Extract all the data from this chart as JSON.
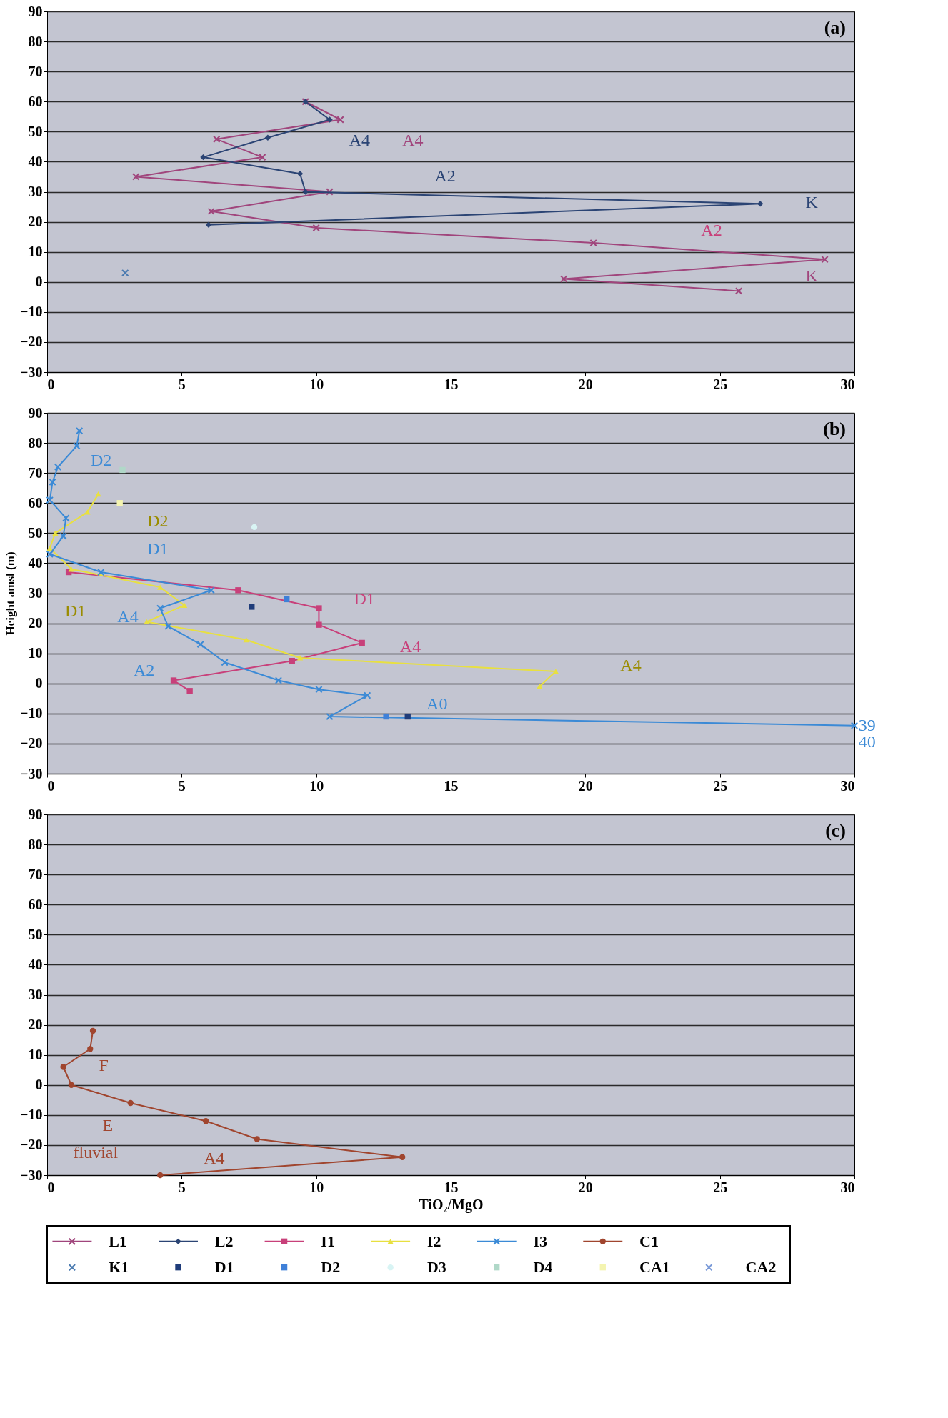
{
  "chart_data": [
    {
      "type": "line",
      "title": "(a)",
      "xlim": [
        0,
        30
      ],
      "ylim": [
        -30,
        90
      ],
      "xticks": [
        0,
        5,
        10,
        15,
        20,
        25,
        30
      ],
      "yticks": [
        -30,
        -20,
        -10,
        0,
        10,
        20,
        30,
        40,
        50,
        60,
        70,
        80,
        90
      ],
      "grid": "y",
      "legend": "bottom",
      "series": [
        {
          "name": "L1",
          "marker": "cross",
          "color": "#a0457c",
          "x": [
            9.6,
            10.9,
            6.3,
            8.0,
            3.3,
            10.5,
            6.1,
            10.0,
            20.3,
            28.9,
            19.2,
            25.7
          ],
          "values": [
            60,
            54,
            47.5,
            41.5,
            35,
            30,
            23.5,
            18,
            13,
            7.5,
            1,
            -3
          ]
        },
        {
          "name": "L2",
          "marker": "diamond",
          "color": "#2b4474",
          "x": [
            9.6,
            10.5,
            8.2,
            5.8,
            9.4,
            9.6,
            26.5,
            6.0
          ],
          "values": [
            60,
            54,
            48,
            41.5,
            36,
            30,
            26,
            19
          ]
        },
        {
          "name": "K1",
          "type": "scatter",
          "marker": "cross",
          "color": "#4a7ab0",
          "x": [
            2.9
          ],
          "values": [
            3
          ]
        }
      ],
      "annotations": [
        "A4",
        "A4",
        "A2",
        "K",
        "A2",
        "K"
      ]
    },
    {
      "type": "line",
      "title": "(b)",
      "ylabel": "Height amsl (m)",
      "xlim": [
        0,
        30
      ],
      "ylim": [
        -30,
        90
      ],
      "xticks": [
        0,
        5,
        10,
        15,
        20,
        25,
        30
      ],
      "yticks": [
        -30,
        -20,
        -10,
        0,
        10,
        20,
        30,
        40,
        50,
        60,
        70,
        80,
        90
      ],
      "grid": "y",
      "legend": "bottom",
      "series": [
        {
          "name": "I1",
          "marker": "square",
          "color": "#c8407a",
          "x": [
            0.8,
            7.1,
            10.1,
            10.1,
            11.7,
            9.1,
            4.7,
            5.3
          ],
          "values": [
            37,
            31,
            25,
            19.5,
            13.5,
            7.5,
            1,
            -2.5
          ]
        },
        {
          "name": "I2",
          "marker": "triangle",
          "color": "#e8e040",
          "x": [
            1.9,
            1.5,
            0.3,
            0.1,
            0.9,
            4.2,
            5.1,
            3.7,
            7.4,
            9.4,
            18.9,
            18.3
          ],
          "values": [
            63,
            57,
            50,
            45,
            38,
            32,
            26,
            20.5,
            14.5,
            8.5,
            4,
            -1
          ]
        },
        {
          "name": "I3",
          "marker": "cross",
          "color": "#3b8ad6",
          "x": [
            1.2,
            1.1,
            0.4,
            0.2,
            0.1,
            0.7,
            0.6,
            0.1,
            2.0,
            6.1,
            4.2,
            4.5,
            5.7,
            6.6,
            8.6,
            10.1,
            11.9,
            10.5,
            30
          ],
          "values": [
            84,
            79,
            72,
            67,
            61,
            55,
            49,
            43,
            37,
            31,
            25,
            19,
            13,
            7,
            1,
            -2,
            -4,
            -11,
            -14
          ]
        },
        {
          "name": "D1",
          "type": "scatter",
          "marker": "square",
          "color": "#1f3c7a",
          "x": [
            7.6,
            13.4
          ],
          "values": [
            25.5,
            -11
          ]
        },
        {
          "name": "D2",
          "type": "scatter",
          "marker": "square",
          "color": "#3f80d8",
          "x": [
            8.9,
            12.6
          ],
          "values": [
            28,
            -11
          ]
        },
        {
          "name": "D3",
          "type": "scatter",
          "marker": "circle",
          "color": "#d8f4f4",
          "x": [
            7.7
          ],
          "values": [
            52
          ]
        },
        {
          "name": "D4",
          "type": "scatter",
          "marker": "square",
          "color": "#b0d8c8",
          "x": [
            2.8
          ],
          "values": [
            71
          ]
        },
        {
          "name": "CA1",
          "type": "scatter",
          "marker": "square",
          "color": "#f4f4b0",
          "x": [
            2.7
          ],
          "values": [
            60
          ]
        },
        {
          "name": "CA2",
          "type": "scatter",
          "marker": "cross",
          "color": "#7a9ad8"
        }
      ],
      "annotations": [
        "D2",
        "D2",
        "D1",
        "D1",
        "A4",
        "D1",
        "A4",
        "A4",
        "A2",
        "A0",
        "39",
        "40"
      ]
    },
    {
      "type": "line",
      "title": "(c)",
      "xlabel": "TiO₂/MgO",
      "xlim": [
        0,
        30
      ],
      "ylim": [
        -30,
        90
      ],
      "xticks": [
        0,
        5,
        10,
        15,
        20,
        25,
        30
      ],
      "yticks": [
        -30,
        -20,
        -10,
        0,
        10,
        20,
        30,
        40,
        50,
        60,
        70,
        80,
        90
      ],
      "grid": "y",
      "legend": "bottom",
      "series": [
        {
          "name": "C1",
          "marker": "circle",
          "color": "#a0452e",
          "x": [
            1.7,
            1.6,
            0.6,
            0.9,
            3.1,
            5.9,
            7.8,
            13.2,
            4.2
          ],
          "values": [
            18,
            12,
            6,
            0,
            -6,
            -12,
            -18,
            -24,
            -30
          ]
        }
      ],
      "annotations": [
        "F",
        "E",
        "fluvial",
        "A4"
      ]
    }
  ]
}
